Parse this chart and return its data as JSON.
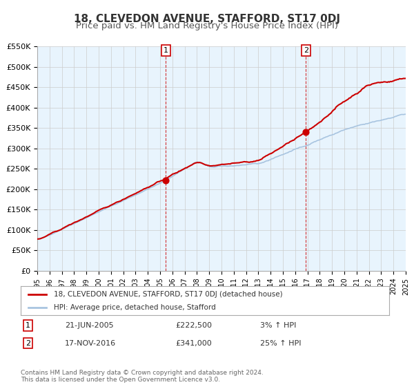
{
  "title": "18, CLEVEDON AVENUE, STAFFORD, ST17 0DJ",
  "subtitle": "Price paid vs. HM Land Registry's House Price Index (HPI)",
  "xlabel": "",
  "ylabel": "",
  "ylim": [
    0,
    550000
  ],
  "yticks": [
    0,
    50000,
    100000,
    150000,
    200000,
    250000,
    300000,
    350000,
    400000,
    450000,
    500000,
    550000
  ],
  "ytick_labels": [
    "£0",
    "£50K",
    "£100K",
    "£150K",
    "£200K",
    "£250K",
    "£300K",
    "£350K",
    "£400K",
    "£450K",
    "£500K",
    "£550K"
  ],
  "hpi_color": "#a8c4e0",
  "price_color": "#cc0000",
  "marker_color": "#cc0000",
  "vline_color": "#cc0000",
  "grid_color": "#cccccc",
  "bg_color": "#ddeeff",
  "plot_bg": "#e8f4fd",
  "legend_label_price": "18, CLEVEDON AVENUE, STAFFORD, ST17 0DJ (detached house)",
  "legend_label_hpi": "HPI: Average price, detached house, Stafford",
  "annotation1_label": "1",
  "annotation1_date": "21-JUN-2005",
  "annotation1_price": "£222,500",
  "annotation1_hpi": "3% ↑ HPI",
  "annotation1_year": 2005.47,
  "annotation1_value": 222500,
  "annotation2_label": "2",
  "annotation2_date": "17-NOV-2016",
  "annotation2_price": "£341,000",
  "annotation2_hpi": "25% ↑ HPI",
  "annotation2_year": 2016.88,
  "annotation2_value": 341000,
  "footer": "Contains HM Land Registry data © Crown copyright and database right 2024.\nThis data is licensed under the Open Government Licence v3.0.",
  "title_fontsize": 11,
  "subtitle_fontsize": 9.5
}
